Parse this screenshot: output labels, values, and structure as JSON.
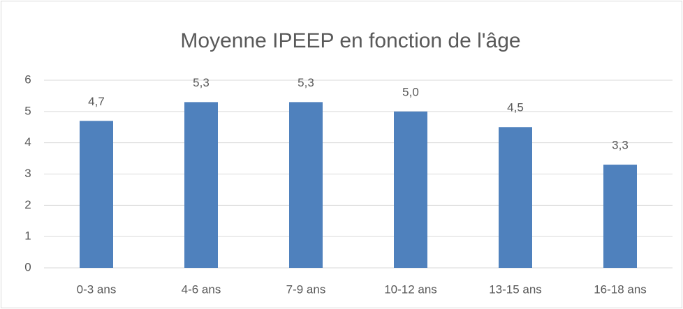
{
  "chart_data": {
    "type": "bar",
    "title": "Moyenne IPEEP en fonction de l'âge",
    "categories": [
      "0-3 ans",
      "4-6 ans",
      "7-9 ans",
      "10-12 ans",
      "13-15 ans",
      "16-18 ans"
    ],
    "values": [
      4.7,
      5.3,
      5.3,
      5.0,
      4.5,
      3.3
    ],
    "value_labels": [
      "4,7",
      "5,3",
      "5,3",
      "5,0",
      "4,5",
      "3,3"
    ],
    "color": "#4f81bd",
    "ylim": [
      0,
      6
    ],
    "yticks": [
      0,
      1,
      2,
      3,
      4,
      5,
      6
    ],
    "grid": true
  }
}
